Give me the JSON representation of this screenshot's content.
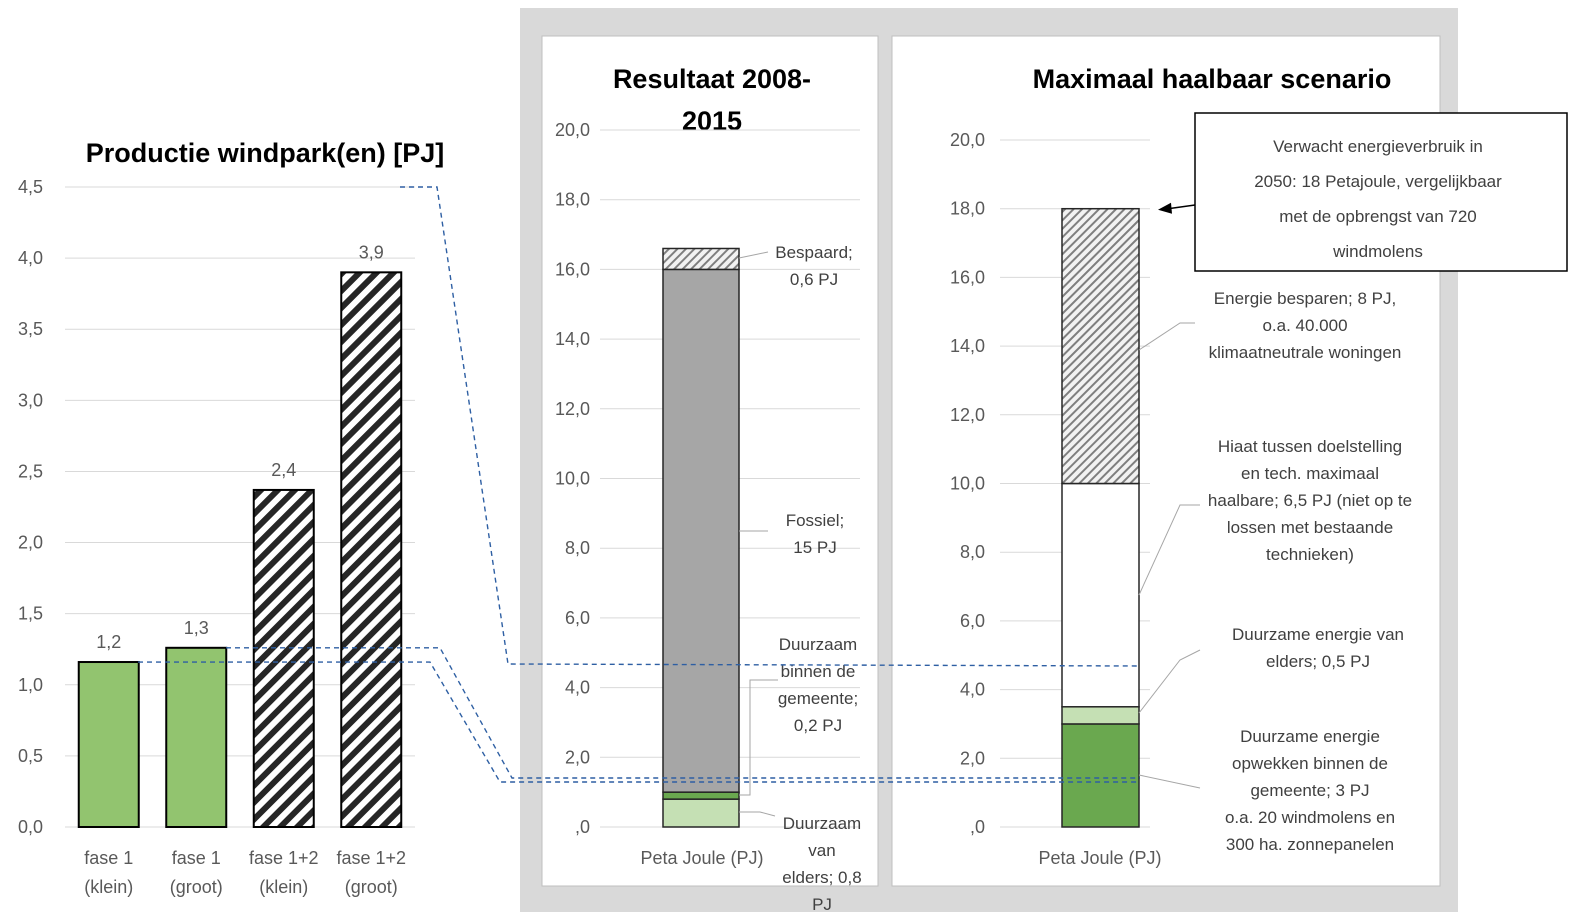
{
  "colors": {
    "green": "#92c46f",
    "green_dark": "#6aa84f",
    "green_light": "#c5e0b4",
    "gray": "#a6a6a6",
    "dashed_link": "#2e5fa3",
    "panel_bg": "#d9d9d9"
  },
  "chart_data": [
    {
      "type": "bar",
      "title": "Productie windpark(en) [PJ]",
      "categories": [
        "fase 1\n(klein)",
        "fase 1\n(groot)",
        "fase 1+2\n(klein)",
        "fase 1+2\n(groot)"
      ],
      "category_lines": [
        [
          "fase 1",
          "(klein)"
        ],
        [
          "fase 1",
          "(groot)"
        ],
        [
          "fase 1+2",
          "(klein)"
        ],
        [
          "fase 1+2",
          "(groot)"
        ]
      ],
      "values": [
        1.16,
        1.26,
        2.37,
        3.9
      ],
      "data_labels": [
        "1,2",
        "1,3",
        "2,4",
        "3,9"
      ],
      "fills": [
        "solid-green",
        "solid-green",
        "hatch",
        "hatch"
      ],
      "ylim": [
        0,
        4.5
      ],
      "yticks": [
        "0,0",
        "0,5",
        "1,0",
        "1,5",
        "2,0",
        "2,5",
        "3,0",
        "3,5",
        "4,0",
        "4,5"
      ],
      "grid": true
    },
    {
      "type": "bar",
      "stacked": true,
      "title": "Resultaat 2008-2015",
      "title_lines": [
        "Resultaat 2008-",
        "2015"
      ],
      "category": "Peta Joule (PJ)",
      "ylim": [
        0,
        20
      ],
      "yticks": [
        ",0",
        "2,0",
        "4,0",
        "6,0",
        "8,0",
        "10,0",
        "12,0",
        "14,0",
        "16,0",
        "18,0",
        "20,0"
      ],
      "segments": [
        {
          "value": 0.8,
          "fill": "green_light",
          "label_lines": [
            "Duurzaam",
            "van",
            "elders; 0,8",
            "PJ"
          ]
        },
        {
          "value": 0.2,
          "fill": "green_dark",
          "label_lines": [
            "Duurzaam",
            "binnen de",
            "gemeente;",
            "0,2 PJ"
          ]
        },
        {
          "value": 15.0,
          "fill": "gray",
          "label_lines": [
            "Fossiel;",
            "15 PJ"
          ]
        },
        {
          "value": 0.6,
          "fill": "hatch",
          "label_lines": [
            "Bespaard;",
            "0,6 PJ"
          ]
        }
      ]
    },
    {
      "type": "bar",
      "stacked": true,
      "title": "Maximaal haalbaar scenario",
      "category": "Peta Joule (PJ)",
      "ylim": [
        0,
        20
      ],
      "yticks": [
        ",0",
        "2,0",
        "4,0",
        "6,0",
        "8,0",
        "10,0",
        "12,0",
        "14,0",
        "16,0",
        "18,0",
        "20,0"
      ],
      "segments": [
        {
          "value": 3.0,
          "fill": "green_dark",
          "label_lines": [
            "Duurzame energie",
            "opwekken binnen de",
            "gemeente; 3 PJ",
            "o.a. 20 windmolens en",
            "300 ha. zonnepanelen"
          ]
        },
        {
          "value": 0.5,
          "fill": "green_light",
          "label_lines": [
            "Duurzame energie van",
            "elders; 0,5 PJ"
          ]
        },
        {
          "value": 6.5,
          "fill": "white",
          "label_lines": [
            "Hiaat tussen doelstelling",
            "en tech. maximaal",
            "haalbare; 6,5 PJ (niet op te",
            "lossen met bestaande",
            "technieken)"
          ]
        },
        {
          "value": 8.0,
          "fill": "hatch",
          "label_lines": [
            "Energie besparen; 8 PJ,",
            "o.a. 40.000",
            "klimaatneutrale woningen"
          ]
        }
      ],
      "callout_lines": [
        "Verwacht energieverbruik in",
        "2050: 18 Petajoule, vergelijkbaar",
        "met de opbrengst van 720",
        "windmolens"
      ]
    }
  ]
}
